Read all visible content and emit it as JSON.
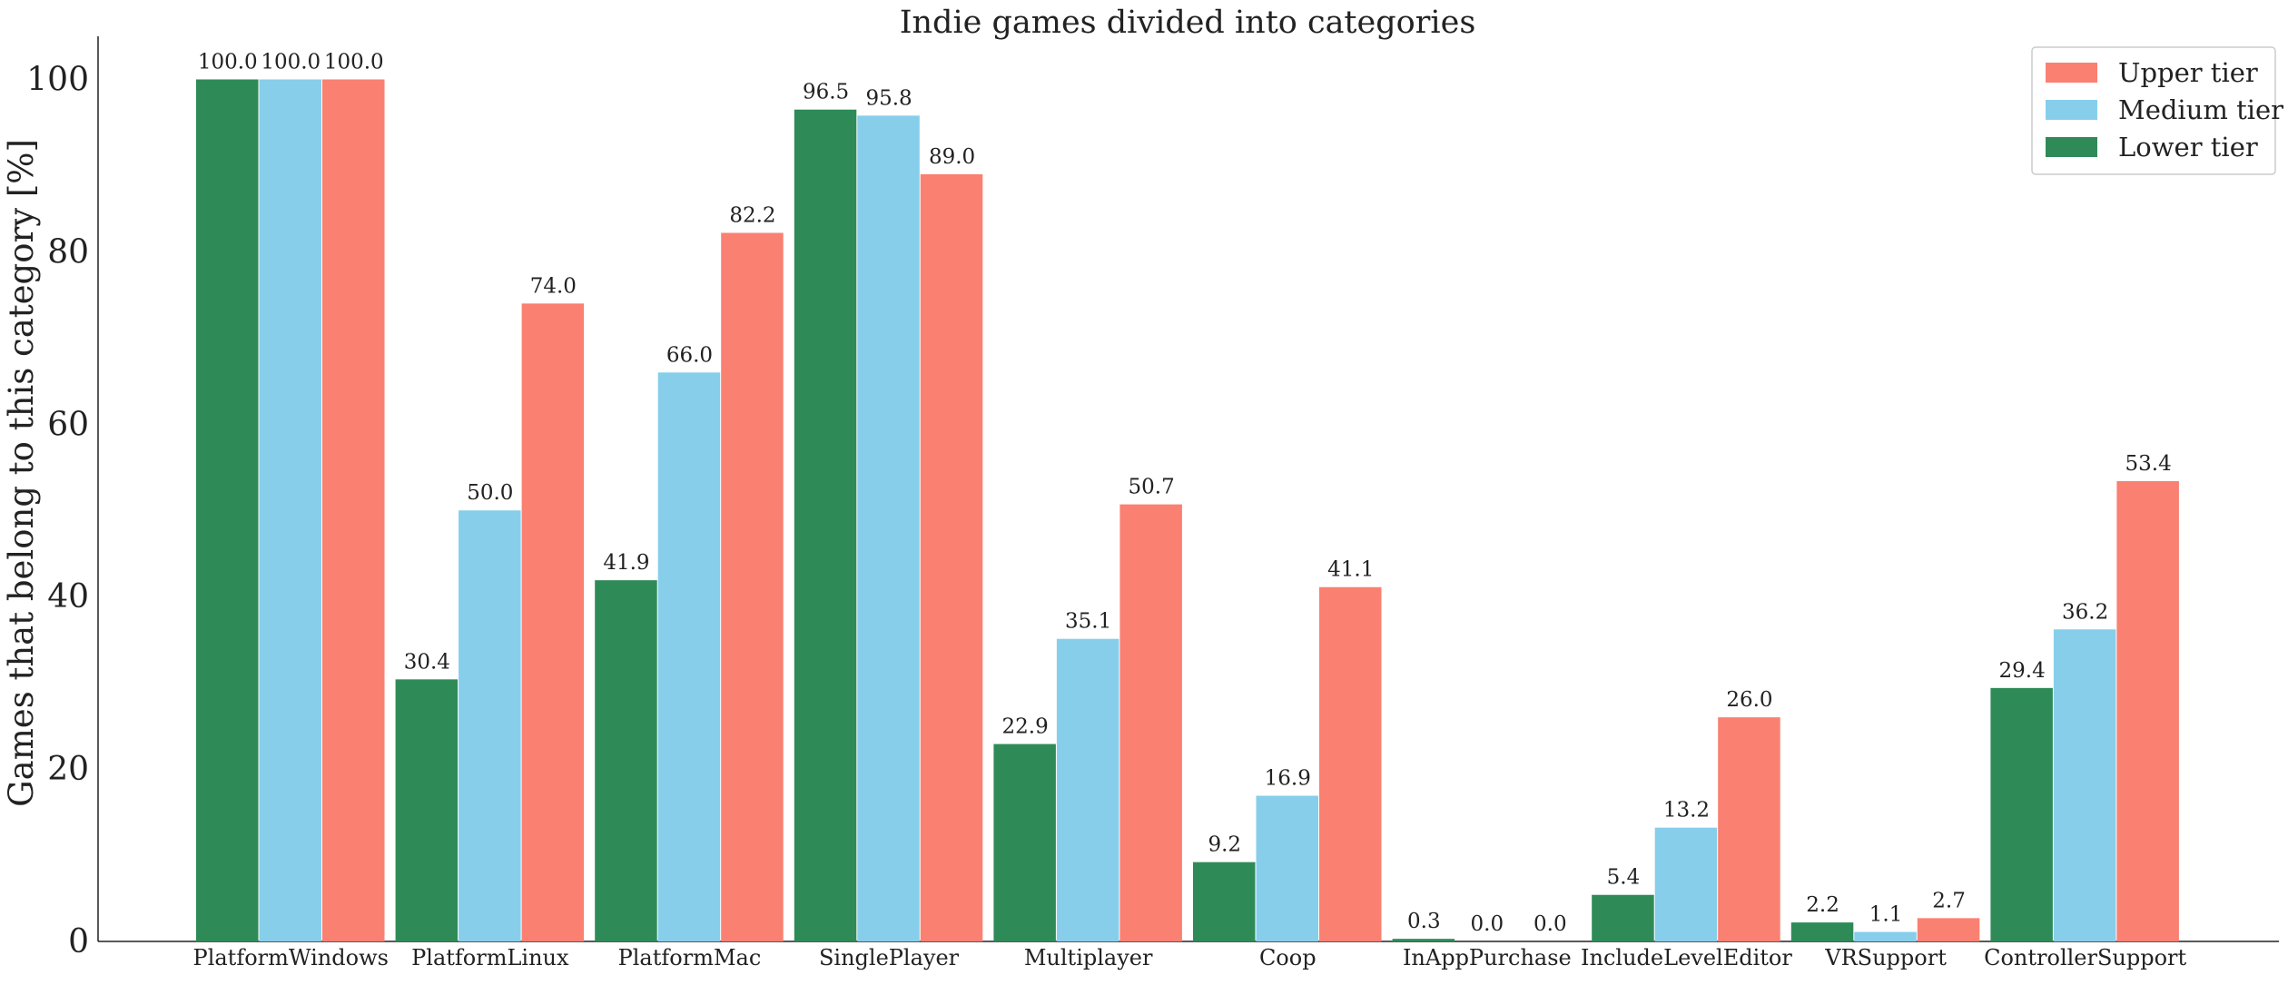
{
  "chart_data": {
    "type": "bar",
    "title": "Indie games divided into categories",
    "xlabel": "",
    "ylabel": "Games  that belong to this category [%]",
    "ylim": [
      0,
      105
    ],
    "yticks": [
      0,
      20,
      40,
      60,
      80,
      100
    ],
    "categories": [
      "PlatformWindows",
      "PlatformLinux",
      "PlatformMac",
      "SinglePlayer",
      "Multiplayer",
      "Coop",
      "InAppPurchase",
      "IncludeLevelEditor",
      "VRSupport",
      "ControllerSupport"
    ],
    "series": [
      {
        "name": "Lower tier",
        "color": "#2e8b57",
        "values": [
          100.0,
          30.4,
          41.9,
          96.5,
          22.9,
          9.2,
          0.3,
          5.4,
          2.2,
          29.4
        ]
      },
      {
        "name": "Medium tier",
        "color": "#87ceeb",
        "values": [
          100.0,
          50.0,
          66.0,
          95.8,
          35.1,
          16.9,
          0.0,
          13.2,
          1.1,
          36.2
        ]
      },
      {
        "name": "Upper tier",
        "color": "#fa8072",
        "values": [
          100.0,
          74.0,
          82.2,
          89.0,
          50.7,
          41.1,
          0.0,
          26.0,
          2.7,
          53.4
        ]
      }
    ],
    "legend": {
      "position": "top-right",
      "order": [
        "Upper tier",
        "Medium tier",
        "Lower tier"
      ]
    },
    "grid": false
  }
}
